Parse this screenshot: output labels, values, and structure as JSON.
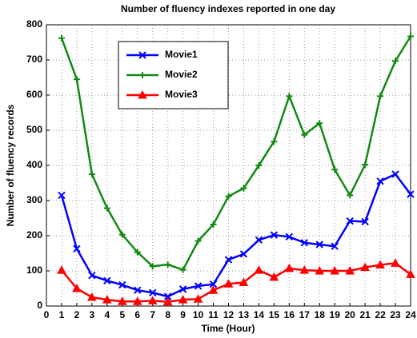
{
  "chart_data": {
    "type": "line",
    "title": "Number of fluency indexes reported in one day",
    "xlabel": "Time (Hour)",
    "ylabel": "Number of fluency records",
    "x": [
      1,
      2,
      3,
      4,
      5,
      6,
      7,
      8,
      9,
      10,
      11,
      12,
      13,
      14,
      15,
      16,
      17,
      18,
      19,
      20,
      21,
      22,
      23,
      24
    ],
    "series": [
      {
        "name": "Movie1",
        "color": "#0000ff",
        "marker": "x",
        "values": [
          315,
          163,
          87,
          72,
          60,
          45,
          38,
          27,
          48,
          57,
          62,
          132,
          148,
          188,
          202,
          197,
          180,
          175,
          170,
          242,
          240,
          355,
          375,
          318
        ]
      },
      {
        "name": "Movie2",
        "color": "#138a13",
        "marker": "+",
        "values": [
          762,
          645,
          375,
          278,
          203,
          153,
          113,
          118,
          103,
          185,
          232,
          312,
          335,
          400,
          468,
          597,
          487,
          520,
          388,
          315,
          402,
          597,
          697,
          767
        ]
      },
      {
        "name": "Movie3",
        "color": "#ff0000",
        "marker": "^",
        "values": [
          102,
          50,
          25,
          18,
          13,
          13,
          15,
          12,
          18,
          20,
          45,
          63,
          67,
          102,
          82,
          107,
          102,
          100,
          100,
          100,
          110,
          117,
          122,
          90
        ]
      }
    ],
    "xlim": [
      0,
      24
    ],
    "xticks": [
      0,
      1,
      2,
      3,
      4,
      5,
      6,
      7,
      8,
      9,
      10,
      11,
      12,
      13,
      14,
      15,
      16,
      17,
      18,
      19,
      20,
      21,
      22,
      23,
      24
    ],
    "ylim": [
      0,
      800
    ],
    "yticks": [
      0,
      100,
      200,
      300,
      400,
      500,
      600,
      700,
      800
    ],
    "grid": true,
    "legend": "upper left"
  }
}
